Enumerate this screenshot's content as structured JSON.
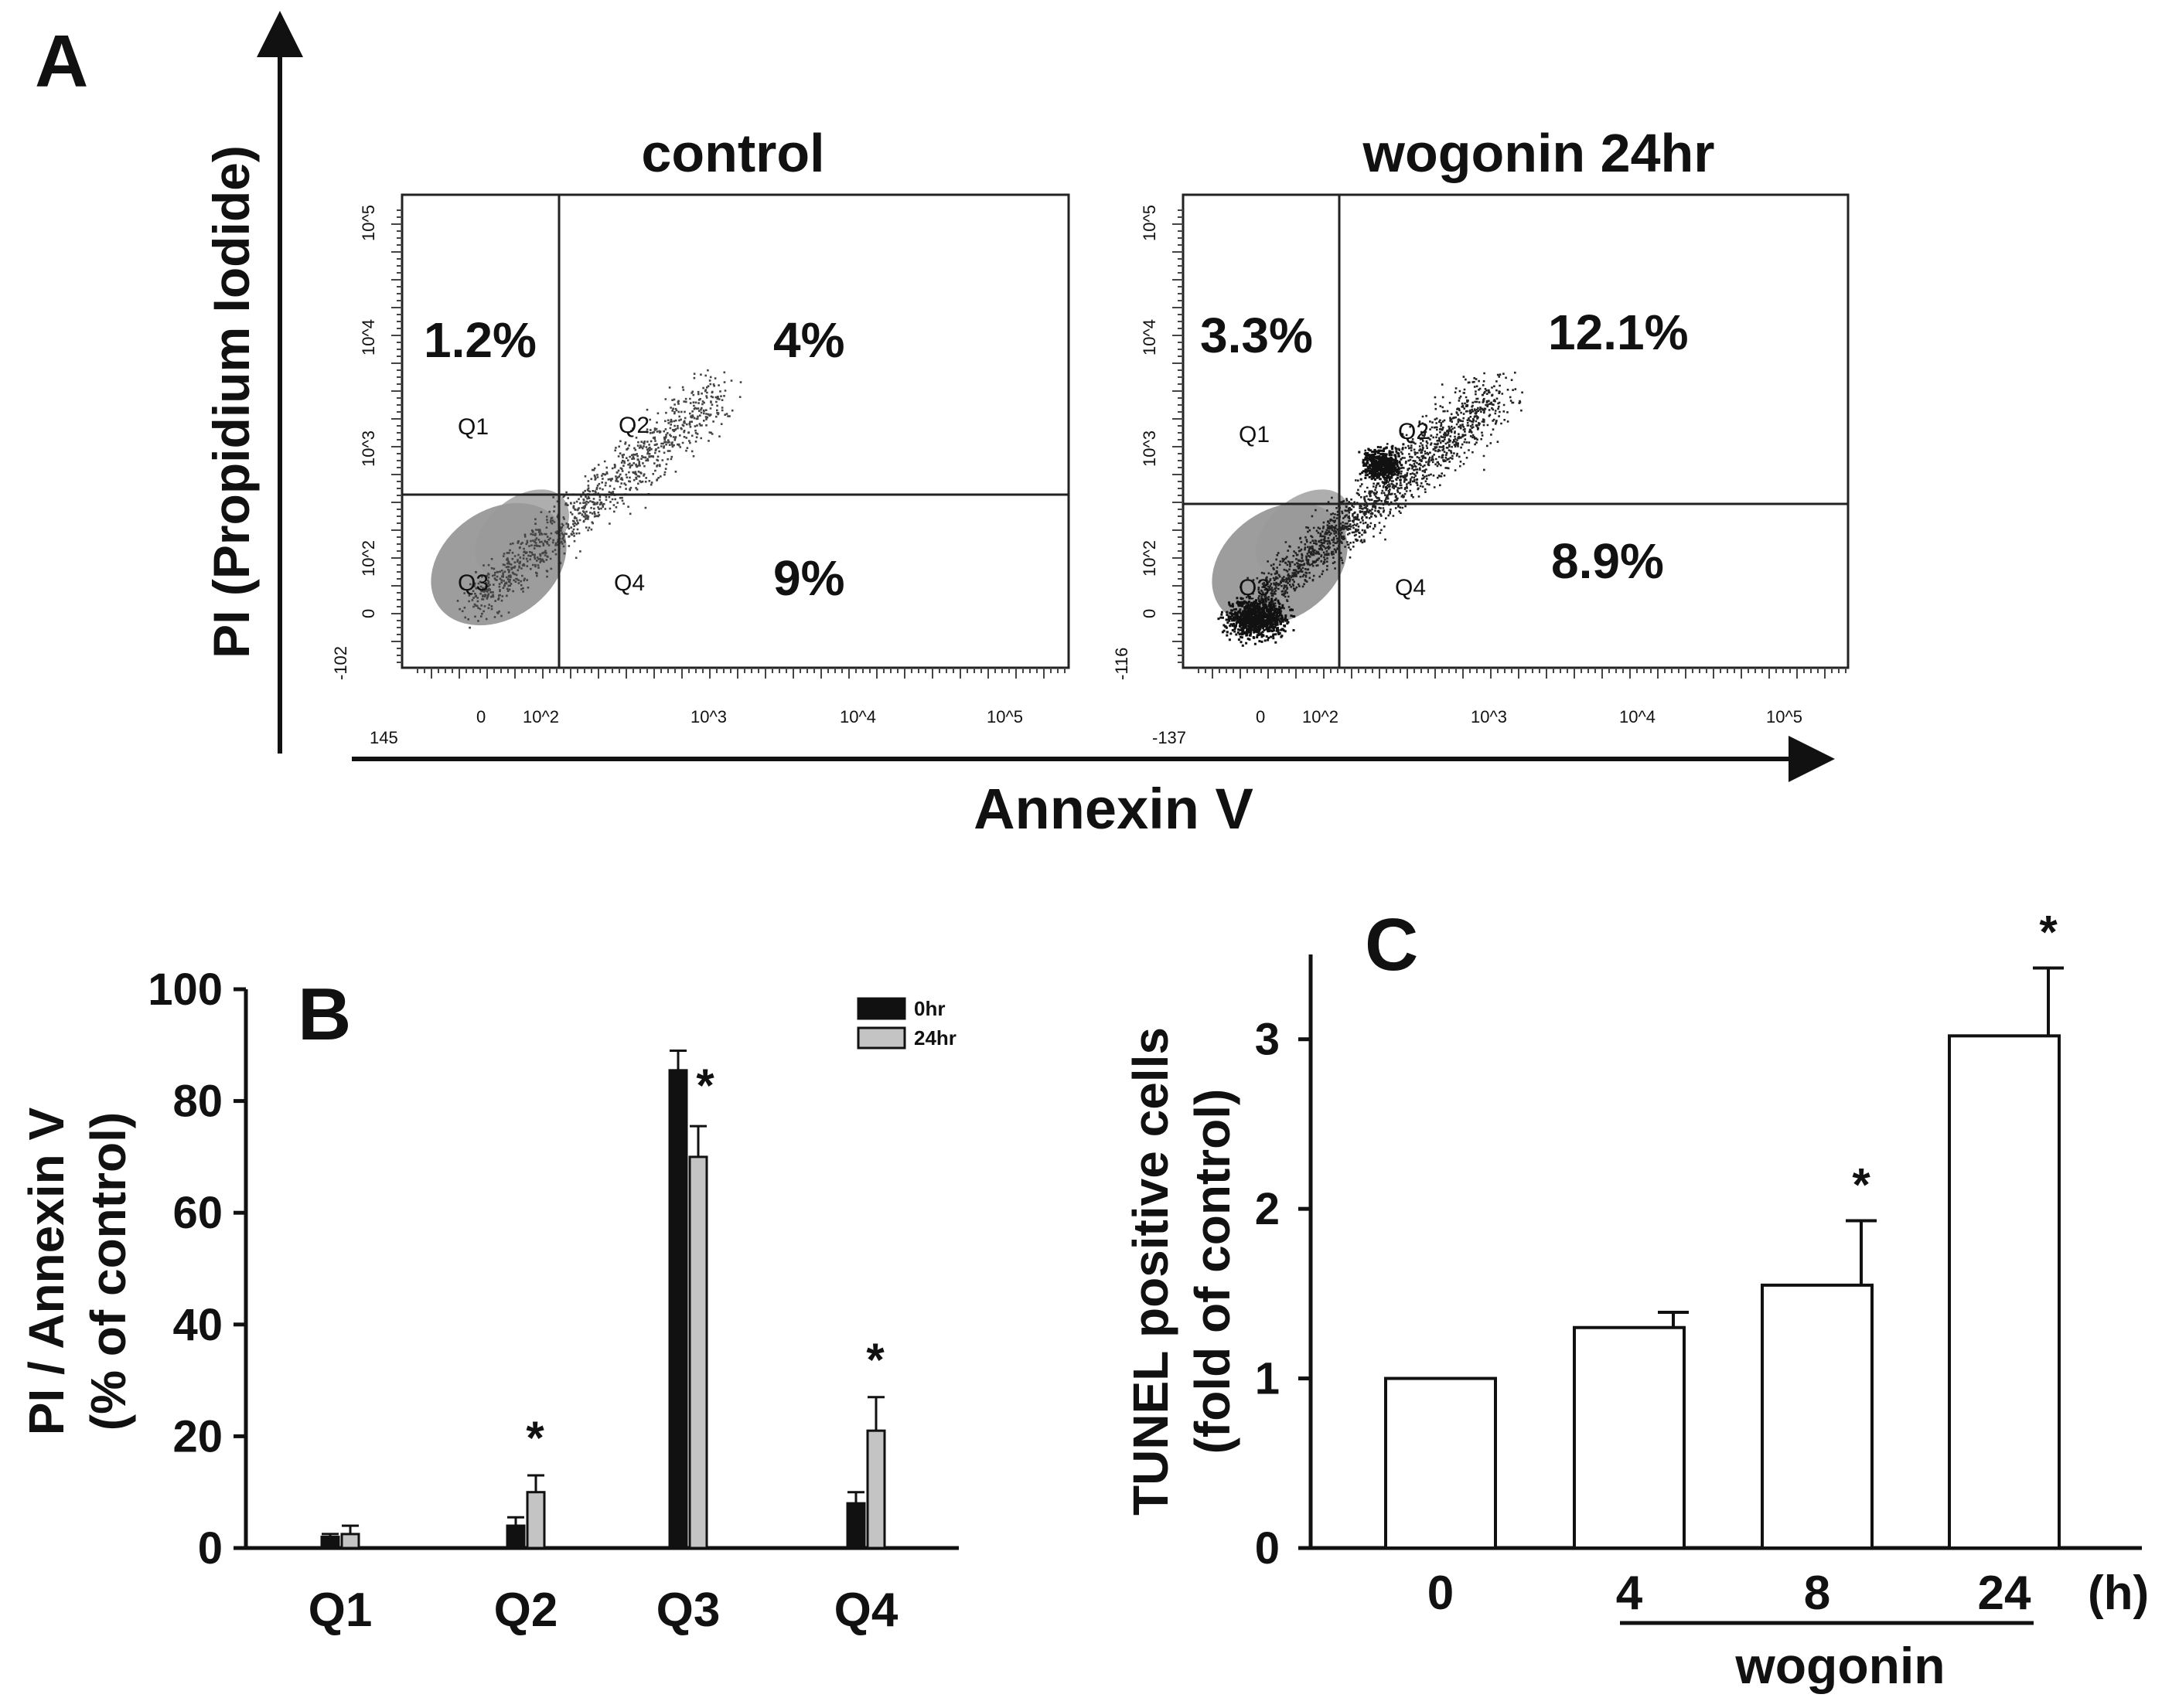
{
  "panels": {
    "a": {
      "letter": "A",
      "y_axis_label": "PI (Propidium Iodide)",
      "x_axis_label": "Annexin V",
      "plots": [
        {
          "title": "control",
          "quadrant_percent": {
            "Q1": "1.2%",
            "Q2": "4%",
            "Q4": "9%"
          },
          "quadrant_names": [
            "Q1",
            "Q2",
            "Q3",
            "Q4"
          ],
          "y_ticks": [
            "10^5",
            "10^4",
            "10^3",
            "10^2",
            "0",
            "-102"
          ],
          "x_ticks": [
            "145",
            "0",
            "10^2",
            "10^3",
            "10^4",
            "10^5"
          ]
        },
        {
          "title": "wogonin 24hr",
          "quadrant_percent": {
            "Q1": "3.3%",
            "Q2": "12.1%",
            "Q4": "8.9%"
          },
          "quadrant_names": [
            "Q1",
            "Q2",
            "Q3",
            "Q4"
          ],
          "y_ticks": [
            "10^5",
            "10^4",
            "10^3",
            "10^2",
            "0",
            "-116"
          ],
          "x_ticks": [
            "-137",
            "0",
            "10^2",
            "10^3",
            "10^4",
            "10^5"
          ]
        }
      ]
    },
    "b": {
      "letter": "B"
    },
    "c": {
      "letter": "C",
      "x_unit": "(h)",
      "group_label": "wogonin"
    }
  },
  "chart_data": [
    {
      "type": "bar",
      "panel": "B",
      "title": "",
      "xlabel": "",
      "ylabel": "PI / Annexin V (% of control)",
      "ylabel_lines": [
        "PI / Annexin V",
        "(% of control)"
      ],
      "ylim": [
        0,
        100
      ],
      "yticks": [
        0,
        20,
        40,
        60,
        80,
        100
      ],
      "categories": [
        "Q1",
        "Q2",
        "Q3",
        "Q4"
      ],
      "series": [
        {
          "name": "0hr",
          "color": "#111111",
          "values": [
            2,
            4,
            85.5,
            8
          ],
          "errors": [
            0.5,
            1.5,
            3.5,
            2
          ]
        },
        {
          "name": "24hr",
          "color": "#c4c4c4",
          "values": [
            2.5,
            10,
            70,
            21
          ],
          "errors": [
            1.5,
            3,
            5.5,
            6
          ]
        }
      ],
      "significance": [
        "",
        "*",
        "*",
        "*"
      ],
      "legend": "top-right"
    },
    {
      "type": "bar",
      "panel": "C",
      "title": "",
      "xlabel": "wogonin (h)",
      "ylabel": "TUNEL positive cells (fold of control)",
      "ylabel_lines": [
        "TUNEL positive cells",
        "(fold of control)"
      ],
      "ylim": [
        0,
        3.5
      ],
      "yticks": [
        0,
        1,
        2,
        3
      ],
      "categories": [
        "0",
        "4",
        "8",
        "24"
      ],
      "values": [
        1.0,
        1.3,
        1.55,
        3.02
      ],
      "errors": [
        0,
        0.09,
        0.38,
        0.4
      ],
      "significance": [
        "",
        "",
        "*",
        "*"
      ],
      "color": "#ffffff"
    }
  ]
}
